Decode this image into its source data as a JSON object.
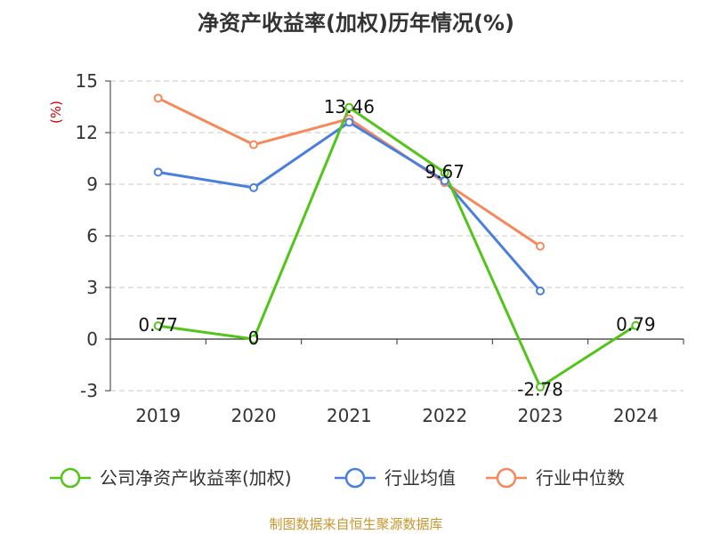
{
  "chart_data": {
    "type": "line",
    "title": "净资产收益率(加权)历年情况(%)",
    "ylabel": "(%)",
    "categories": [
      "2019",
      "2020",
      "2021",
      "2022",
      "2023",
      "2024"
    ],
    "ylim": [
      -3,
      15
    ],
    "yticks": [
      15,
      12,
      9,
      6,
      3,
      0,
      -3
    ],
    "grid": true,
    "legend_position": "bottom",
    "series": [
      {
        "name": "公司净资产收益率(加权)",
        "color": "#52c41a",
        "values": [
          0.77,
          0,
          13.46,
          9.67,
          -2.78,
          0.79
        ],
        "labels": [
          "0.77",
          "0",
          "13.46",
          "9.67",
          "-2.78",
          "0.79"
        ]
      },
      {
        "name": "行业均值",
        "color": "#4a7fdb",
        "values": [
          9.7,
          8.8,
          12.6,
          9.2,
          2.8,
          null
        ]
      },
      {
        "name": "行业中位数",
        "color": "#f5895b",
        "values": [
          14.0,
          11.3,
          12.8,
          9.1,
          5.4,
          null
        ]
      }
    ]
  },
  "source": "制图数据来自恒生聚源数据库"
}
